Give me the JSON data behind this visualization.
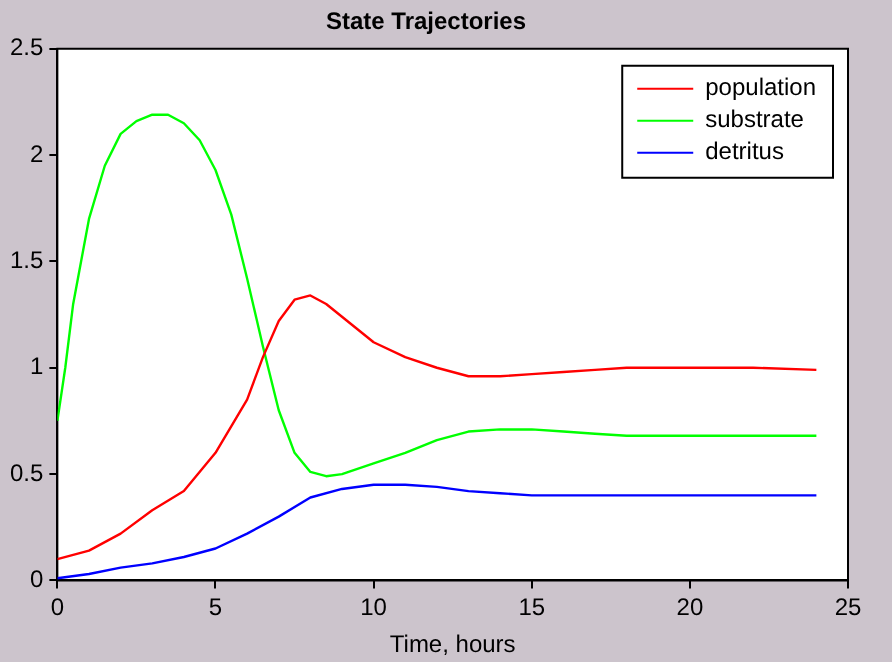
{
  "chart_data": {
    "type": "line",
    "title": "State Trajectories",
    "xlabel": "Time, hours",
    "xlim": [
      0,
      25
    ],
    "xticks": [
      0,
      5,
      10,
      15,
      20,
      25
    ],
    "ylim": [
      0,
      2.5
    ],
    "yticks": [
      0,
      0.5,
      1,
      1.5,
      2,
      2.5
    ],
    "grid": false,
    "legend": "top right",
    "marker": "none",
    "line_style": "solid",
    "series": [
      {
        "name": "population",
        "color": "#ff0000",
        "x": [
          0,
          1,
          2,
          3,
          4,
          5,
          6,
          6.5,
          7,
          7.5,
          8,
          8.5,
          9,
          10,
          11,
          12,
          13,
          14,
          15,
          16,
          17,
          18,
          22,
          24
        ],
        "values": [
          0.1,
          0.14,
          0.22,
          0.33,
          0.42,
          0.6,
          0.85,
          1.05,
          1.22,
          1.32,
          1.34,
          1.3,
          1.24,
          1.12,
          1.05,
          1.0,
          0.96,
          0.96,
          0.97,
          0.98,
          0.99,
          1.0,
          1.0,
          0.99
        ]
      },
      {
        "name": "substrate",
        "color": "#00ff00",
        "x": [
          0,
          0.25,
          0.5,
          1,
          1.5,
          2,
          2.5,
          3,
          3.5,
          4,
          4.5,
          5,
          5.5,
          6,
          6.5,
          7,
          7.5,
          8,
          8.5,
          9,
          10,
          11,
          12,
          13,
          14,
          15,
          16,
          17,
          18,
          24
        ],
        "values": [
          0.75,
          1.0,
          1.3,
          1.7,
          1.95,
          2.1,
          2.16,
          2.19,
          2.19,
          2.15,
          2.07,
          1.93,
          1.72,
          1.42,
          1.1,
          0.8,
          0.6,
          0.51,
          0.49,
          0.5,
          0.55,
          0.6,
          0.66,
          0.7,
          0.71,
          0.71,
          0.7,
          0.69,
          0.68,
          0.68
        ]
      },
      {
        "name": "detritus",
        "color": "#0000ff",
        "x": [
          0,
          1,
          2,
          3,
          4,
          5,
          6,
          7,
          8,
          9,
          10,
          11,
          12,
          13,
          14,
          15,
          24
        ],
        "values": [
          0.01,
          0.03,
          0.06,
          0.08,
          0.11,
          0.15,
          0.22,
          0.3,
          0.39,
          0.43,
          0.45,
          0.45,
          0.44,
          0.42,
          0.41,
          0.4,
          0.4
        ]
      }
    ]
  }
}
